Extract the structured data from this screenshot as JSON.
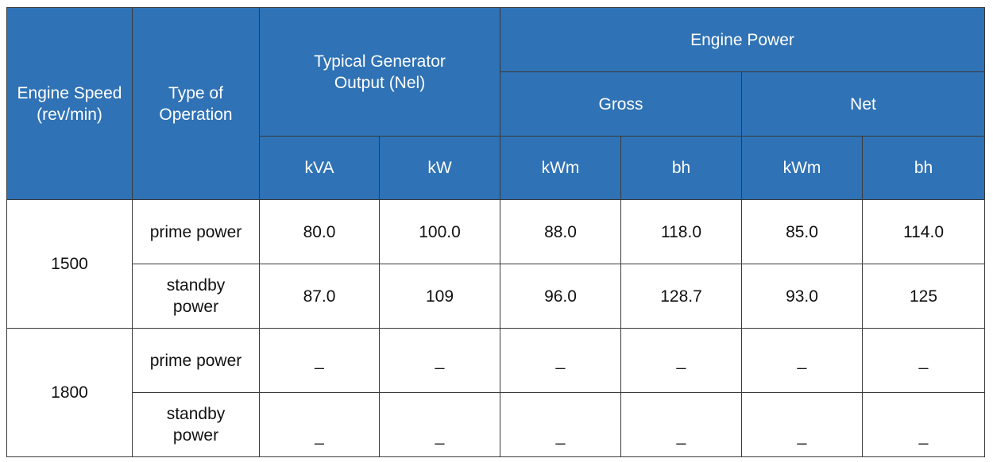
{
  "headers": {
    "engine_speed": [
      "Engine Speed",
      "(rev/min)"
    ],
    "type_of_operation": [
      "Type of",
      "Operation"
    ],
    "typical_output": [
      "Typical Generator",
      "Output (Nel)"
    ],
    "engine_power": "Engine Power",
    "gross": "Gross",
    "net": "Net",
    "units": [
      "kVA",
      "kW",
      "kWm",
      "bh",
      "kWm",
      "bh"
    ]
  },
  "rows": [
    {
      "speed": "1500",
      "operations": [
        {
          "type": "prime power",
          "values": [
            "80.0",
            "100.0",
            "88.0",
            "118.0",
            "85.0",
            "114.0"
          ]
        },
        {
          "type": [
            "standby",
            "power"
          ],
          "values": [
            "87.0",
            "109",
            "96.0",
            "128.7",
            "93.0",
            "125"
          ]
        }
      ]
    },
    {
      "speed": "1800",
      "operations": [
        {
          "type": "prime power",
          "values": [
            "_",
            "_",
            "_",
            "_",
            "_",
            "_"
          ]
        },
        {
          "type": [
            "standby",
            "power"
          ],
          "values": [
            "_",
            "_",
            "_",
            "_",
            "_",
            "_"
          ]
        }
      ]
    }
  ]
}
